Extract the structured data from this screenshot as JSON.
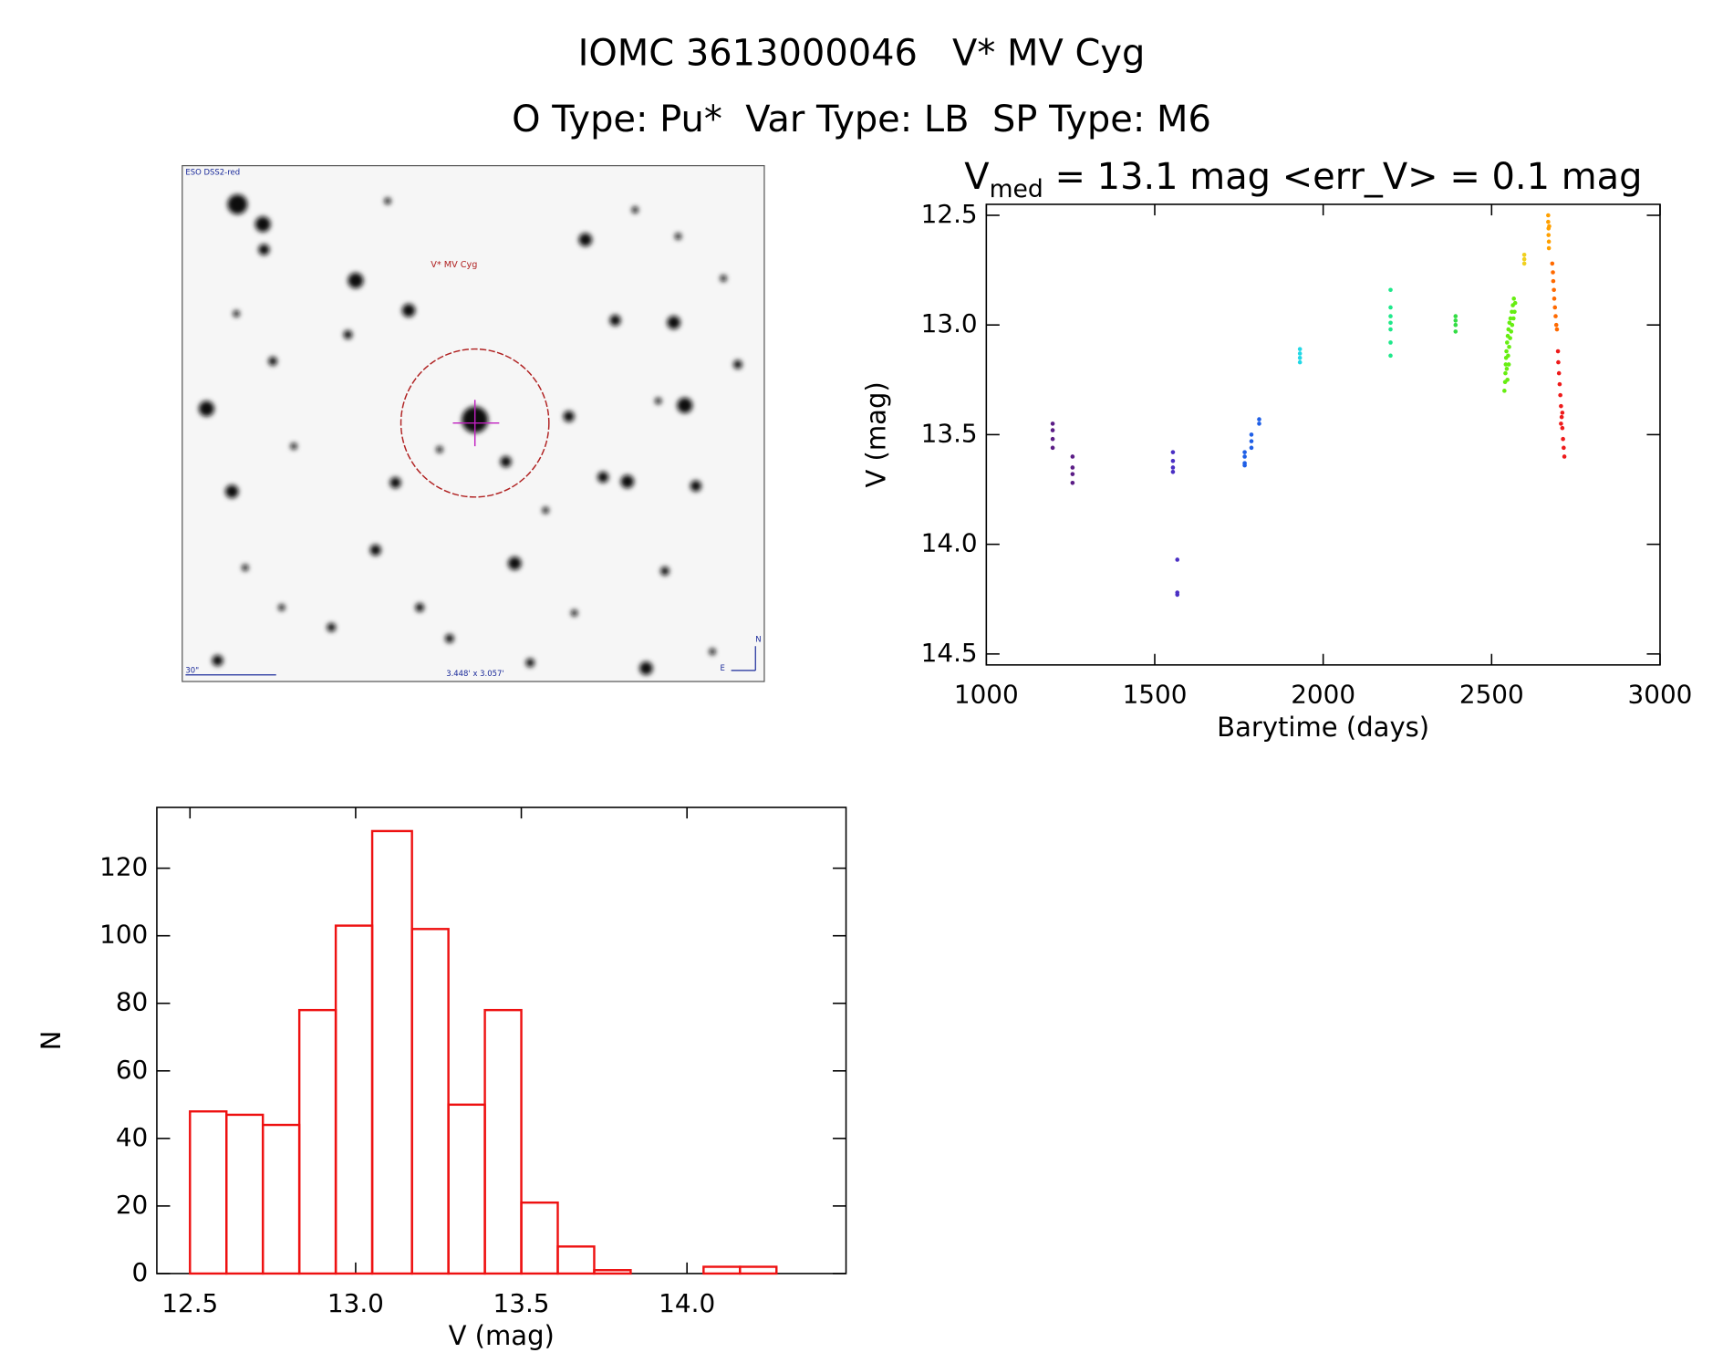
{
  "title": "IOMC 3613000046   V* MV Cyg",
  "subtitle": "O Type: Pu*  Var Type: LB  SP Type: M6",
  "finder_chart": {
    "survey": "ESO DSS2-red",
    "target": "V* MV Cyg",
    "scale": "30\"",
    "size": "3.448' x 3.057'",
    "north": "N",
    "east": "E"
  },
  "chart_data": [
    {
      "type": "scatter",
      "title": {
        "symbol": "V",
        "subscript": "med",
        "text": " = 13.1 mag <err_V> = 0.1 mag"
      },
      "x_label": "Barytime (days)",
      "y_label": "V (mag)",
      "xlim": [
        1000,
        3000
      ],
      "xticks": [
        1000,
        1500,
        2000,
        2500,
        3000
      ],
      "ylim": [
        12.45,
        14.55
      ],
      "yticks": [
        12.5,
        {
          "value": 13,
          "label": "13.0"
        },
        13.5,
        {
          "value": 14,
          "label": "14.0"
        },
        14.5
      ],
      "y_inverted": true,
      "series": [
        {
          "color": "#5b1d86",
          "x": [
            1197,
            1197,
            1197,
            1197,
            1256,
            1256,
            1256,
            1256
          ],
          "y": [
            13.45,
            13.48,
            13.52,
            13.56,
            13.6,
            13.65,
            13.68,
            13.72
          ]
        },
        {
          "color": "#4a2fc4",
          "x": [
            1554,
            1554,
            1554,
            1554,
            1567,
            1567,
            1567
          ],
          "y": [
            13.58,
            13.62,
            13.65,
            13.67,
            14.07,
            14.22,
            14.23
          ]
        },
        {
          "color": "#1f5fe6",
          "x": [
            1767,
            1767,
            1767,
            1767,
            1787,
            1787,
            1787,
            1810,
            1810
          ],
          "y": [
            13.58,
            13.6,
            13.63,
            13.64,
            13.5,
            13.53,
            13.56,
            13.43,
            13.45
          ]
        },
        {
          "color": "#22d8e6",
          "x": [
            1931,
            1931,
            1931,
            1931
          ],
          "y": [
            13.11,
            13.13,
            13.15,
            13.17
          ]
        },
        {
          "color": "#1ee88a",
          "x": [
            2200,
            2200,
            2200,
            2200,
            2200,
            2200,
            2200
          ],
          "y": [
            12.84,
            12.92,
            12.96,
            12.99,
            13.02,
            13.08,
            13.14
          ]
        },
        {
          "color": "#33dd44",
          "x": [
            2393,
            2393,
            2393,
            2393
          ],
          "y": [
            12.96,
            12.98,
            13.0,
            13.03
          ]
        },
        {
          "color": "#66ee11",
          "x": [
            2538,
            2540,
            2541,
            2542,
            2543,
            2544,
            2545,
            2546,
            2548,
            2549,
            2550,
            2552,
            2553,
            2555,
            2556,
            2558,
            2560,
            2561,
            2563,
            2565,
            2566,
            2568,
            2570,
            2547,
            2551
          ],
          "y": [
            13.3,
            13.26,
            13.22,
            13.18,
            13.15,
            13.12,
            13.2,
            13.08,
            13.05,
            13.14,
            13.02,
            13.1,
            12.99,
            13.06,
            12.97,
            13.03,
            12.94,
            13.0,
            12.91,
            12.97,
            12.88,
            12.94,
            12.9,
            13.25,
            13.18
          ]
        },
        {
          "color": "#f0d020",
          "x": [
            2597,
            2597,
            2597
          ],
          "y": [
            12.68,
            12.7,
            12.72
          ]
        },
        {
          "color": "#ffa000",
          "x": [
            2668,
            2668,
            2669,
            2669,
            2670,
            2670,
            2671
          ],
          "y": [
            12.5,
            12.53,
            12.56,
            12.59,
            12.62,
            12.65,
            12.55
          ]
        },
        {
          "color": "#ff6a00",
          "x": [
            2680,
            2682,
            2683,
            2685,
            2686,
            2688,
            2690,
            2692,
            2694
          ],
          "y": [
            12.72,
            12.76,
            12.8,
            12.84,
            12.88,
            12.92,
            12.96,
            13.0,
            13.02
          ]
        },
        {
          "color": "#ee1a1a",
          "x": [
            2697,
            2698,
            2700,
            2702,
            2704,
            2706,
            2708,
            2710,
            2712,
            2714,
            2716,
            2706,
            2710
          ],
          "y": [
            13.12,
            13.17,
            13.22,
            13.27,
            13.32,
            13.37,
            13.42,
            13.47,
            13.52,
            13.56,
            13.6,
            13.45,
            13.4
          ]
        }
      ]
    },
    {
      "type": "histogram",
      "x_label": "V (mag)",
      "y_label": "N",
      "color": "#ee1111",
      "bins": [
        12.5,
        12.61,
        12.72,
        12.83,
        12.94,
        13.05,
        13.17,
        13.28,
        13.39,
        13.5,
        13.61,
        13.72,
        13.83,
        13.94,
        14.05,
        14.16,
        14.27
      ],
      "values": [
        48,
        47,
        44,
        78,
        103,
        131,
        102,
        50,
        78,
        21,
        8,
        1,
        0,
        0,
        2,
        2
      ],
      "xlim": [
        12.4,
        14.48
      ],
      "xticks": [
        12.5,
        {
          "value": 13,
          "label": "13.0"
        },
        13.5,
        {
          "value": 14,
          "label": "14.0"
        }
      ],
      "ylim": [
        0,
        138
      ],
      "yticks": [
        0,
        20,
        40,
        60,
        80,
        100,
        120
      ]
    }
  ]
}
